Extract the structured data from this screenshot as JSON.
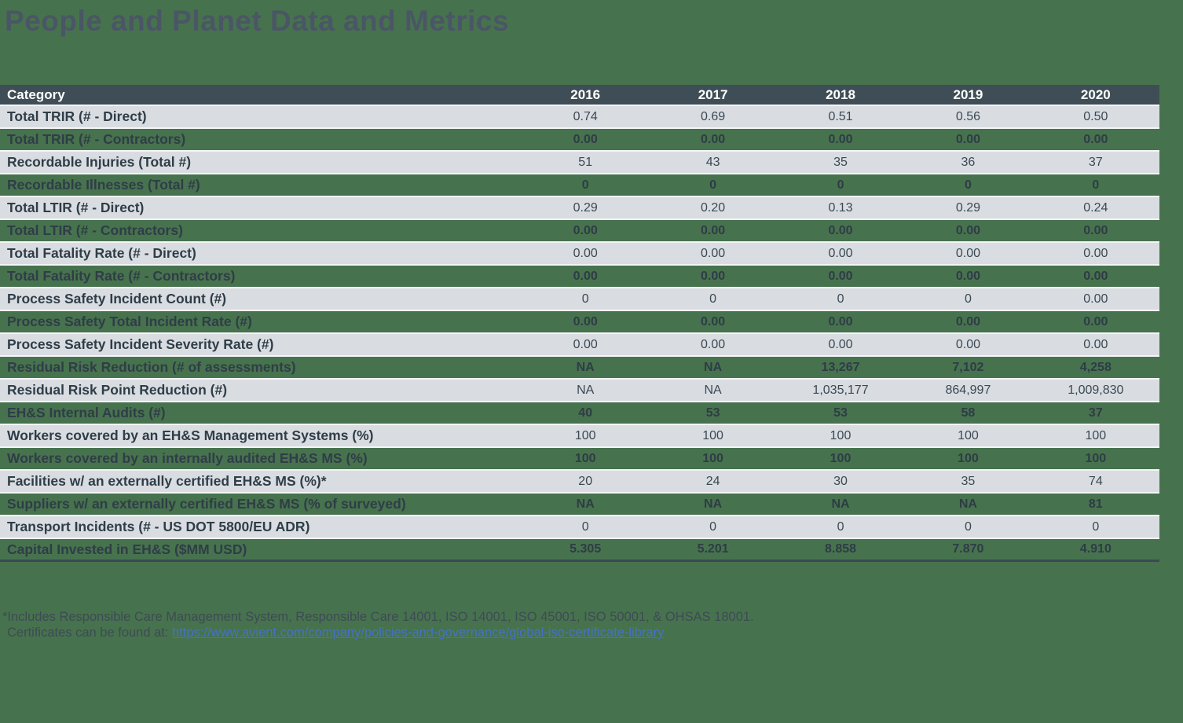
{
  "title": "People and Planet Data and Metrics",
  "chart_data": {
    "type": "table",
    "title": "People and Planet Data and Metrics",
    "columns": [
      "Category",
      "2016",
      "2017",
      "2018",
      "2019",
      "2020"
    ],
    "rows": [
      {
        "category": "Total TRIR (# - Direct)",
        "values": [
          "0.74",
          "0.69",
          "0.51",
          "0.56",
          "0.50"
        ]
      },
      {
        "category": "Total TRIR (# - Contractors)",
        "values": [
          "0.00",
          "0.00",
          "0.00",
          "0.00",
          "0.00"
        ]
      },
      {
        "category": "Recordable Injuries (Total #)",
        "values": [
          "51",
          "43",
          "35",
          "36",
          "37"
        ]
      },
      {
        "category": "Recordable Illnesses (Total #)",
        "values": [
          "0",
          "0",
          "0",
          "0",
          "0"
        ]
      },
      {
        "category": "Total LTIR (# - Direct)",
        "values": [
          "0.29",
          "0.20",
          "0.13",
          "0.29",
          "0.24"
        ]
      },
      {
        "category": "Total LTIR (# - Contractors)",
        "values": [
          "0.00",
          "0.00",
          "0.00",
          "0.00",
          "0.00"
        ]
      },
      {
        "category": "Total Fatality Rate (# - Direct)",
        "values": [
          "0.00",
          "0.00",
          "0.00",
          "0.00",
          "0.00"
        ]
      },
      {
        "category": "Total Fatality Rate (# - Contractors)",
        "values": [
          "0.00",
          "0.00",
          "0.00",
          "0.00",
          "0.00"
        ]
      },
      {
        "category": "Process Safety Incident Count (#)",
        "values": [
          "0",
          "0",
          "0",
          "0",
          "0.00"
        ]
      },
      {
        "category": "Process Safety Total Incident Rate (#)",
        "values": [
          "0.00",
          "0.00",
          "0.00",
          "0.00",
          "0.00"
        ]
      },
      {
        "category": "Process Safety Incident Severity Rate (#)",
        "values": [
          "0.00",
          "0.00",
          "0.00",
          "0.00",
          "0.00"
        ]
      },
      {
        "category": "Residual Risk Reduction (# of assessments)",
        "values": [
          "NA",
          "NA",
          "13,267",
          "7,102",
          "4,258"
        ]
      },
      {
        "category": "Residual Risk Point Reduction (#)",
        "values": [
          "NA",
          "NA",
          "1,035,177",
          "864,997",
          "1,009,830"
        ]
      },
      {
        "category": "EH&S Internal Audits (#)",
        "values": [
          "40",
          "53",
          "53",
          "58",
          "37"
        ]
      },
      {
        "category": "Workers covered by an EH&S Management Systems (%)",
        "values": [
          "100",
          "100",
          "100",
          "100",
          "100"
        ]
      },
      {
        "category": "Workers covered by an internally audited EH&S MS (%)",
        "values": [
          "100",
          "100",
          "100",
          "100",
          "100"
        ]
      },
      {
        "category": "Facilities w/ an externally certified EH&S MS (%)*",
        "values": [
          "20",
          "24",
          "30",
          "35",
          "74"
        ]
      },
      {
        "category": "Suppliers w/ an externally certified EH&S MS (% of surveyed)",
        "values": [
          "NA",
          "NA",
          "NA",
          "NA",
          "81"
        ]
      },
      {
        "category": "Transport Incidents (# - US DOT 5800/EU ADR)",
        "values": [
          "0",
          "0",
          "0",
          "0",
          "0"
        ]
      },
      {
        "category": "Capital Invested in EH&S ($MM USD)",
        "values": [
          "5.305",
          "5.201",
          "8.858",
          "7.870",
          "4.910"
        ]
      }
    ]
  },
  "footnote": {
    "line1": "*Includes Responsible Care Management System, Responsible Care 14001, ISO 14001, ISO 45001, ISO 50001, & OHSAS 18001.",
    "line2_prefix": "Certificates can be found at: ",
    "link_text": "https://www.avient.com/company/policies-and-governance/global-iso-certificate-library"
  },
  "colors": {
    "background_green": "#47724E",
    "gray_row": "#D9DDE2",
    "header_background": "#3F4E56",
    "header_text": "#FFFFFF",
    "category_text": "#2F3D47",
    "value_text": "#3B4852",
    "title": "#4A5666",
    "footnote_text": "#3E4B55",
    "link": "#4472C4",
    "table_bottom_border": "#3B4A52"
  }
}
